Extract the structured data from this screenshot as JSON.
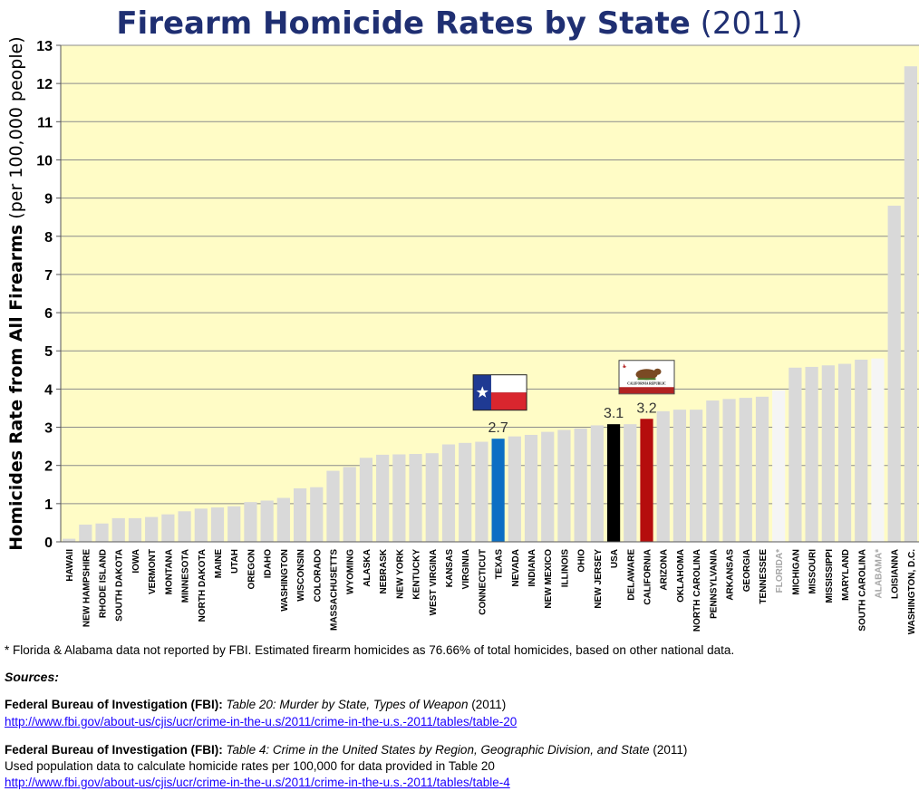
{
  "title": {
    "main": "Firearm Homicide Rates by State",
    "year": "(2011)"
  },
  "chart_data": {
    "type": "bar",
    "title": "Firearm Homicide Rates by State (2011)",
    "ylabel_bold": "Homicides Rate from All Firearms",
    "ylabel_rest": "(per 100,000 people)",
    "xlabel": "",
    "ylim": [
      0,
      13
    ],
    "yticks": [
      "0",
      "1",
      "2",
      "3",
      "4",
      "5",
      "6",
      "7",
      "8",
      "9",
      "10",
      "11",
      "12",
      "13"
    ],
    "grid": true,
    "background": "#fffcc6",
    "categories": [
      "HAWAII",
      "NEW HAMPSHIRE",
      "RHODE ISLAND",
      "SOUTH DAKOTA",
      "IOWA",
      "VERMONT",
      "MONTANA",
      "MINNESOTA",
      "NORTH DAKOTA",
      "MAINE",
      "UTAH",
      "OREGON",
      "IDAHO",
      "WASHINGTON",
      "WISCONSIN",
      "COLORADO",
      "MASSACHUSETTS",
      "WYOMING",
      "ALASKA",
      "NEBRASK",
      "NEW YORK",
      "KENTUCKY",
      "WEST VIRGINA",
      "KANSAS",
      "VIRGINIA",
      "CONNECTICUT",
      "TEXAS",
      "NEVADA",
      "INDIANA",
      "NEW MEXICO",
      "ILLINOIS",
      "OHIO",
      "NEW JERSEY",
      "USA",
      "DELAWARE",
      "CALIFORNIA",
      "ARIZONA",
      "OKLAHOMA",
      "NORTH CAROLINA",
      "PENNSYLVANIA",
      "ARKANSAS",
      "GEORGIA",
      "TENNESSEE",
      "FLORIDA*",
      "MICHIGAN",
      "MISSOURI",
      "MISSISSIPPI",
      "MARYLAND",
      "SOUTH CAROLINA",
      "ALABAMA*",
      "LOISIANNA",
      "WASHINGTON, D.C."
    ],
    "values": [
      0.08,
      0.45,
      0.48,
      0.62,
      0.62,
      0.65,
      0.72,
      0.8,
      0.87,
      0.9,
      0.93,
      1.04,
      1.08,
      1.15,
      1.4,
      1.43,
      1.86,
      1.96,
      2.2,
      2.28,
      2.29,
      2.3,
      2.32,
      2.55,
      2.59,
      2.62,
      2.7,
      2.76,
      2.8,
      2.88,
      2.93,
      2.97,
      3.05,
      3.08,
      3.08,
      3.22,
      3.42,
      3.46,
      3.46,
      3.7,
      3.74,
      3.77,
      3.8,
      3.97,
      4.56,
      4.58,
      4.62,
      4.66,
      4.77,
      4.8,
      8.8,
      12.45
    ],
    "colors": {
      "default": "#d9d9d9",
      "TEXAS": "#0c6fc4",
      "USA": "#000000",
      "CALIFORNIA": "#b50d0d",
      "FLORIDA*": "#f5f5f5",
      "ALABAMA*": "#f5f5f5",
      "title": "#1f2f72",
      "faded_label": "#a6a6a6"
    },
    "faded_categories": [
      "FLORIDA*",
      "ALABAMA*"
    ],
    "annotations": [
      {
        "category": "TEXAS",
        "text": "2.7",
        "flag": "texas-flag"
      },
      {
        "category": "USA",
        "text": "3.1"
      },
      {
        "category": "CALIFORNIA",
        "text": "3.2",
        "flag": "california-flag"
      }
    ],
    "california_flag_text": "CALIFORNIA REPUBLIC"
  },
  "notes": {
    "footnote": "* Florida & Alabama data not reported by FBI. Estimated firearm homicides as 76.66% of total homicides, based on other national data.",
    "sources_heading": "Sources:",
    "source1": {
      "org": "Federal Bureau of Investigation (FBI):",
      "title": "Table 20: Murder by State, Types of Weapon",
      "year": "(2011)",
      "url": "http://www.fbi.gov/about-us/cjis/ucr/crime-in-the-u.s/2011/crime-in-the-u.s.-2011/tables/table-20"
    },
    "source2": {
      "org": "Federal Bureau of Investigation (FBI):",
      "title": "Table 4: Crime in the United States by Region, Geographic Division, and State",
      "year": "(2011)",
      "note": "Used population data to calculate homicide rates per 100,000 for data provided in Table 20",
      "url": "http://www.fbi.gov/about-us/cjis/ucr/crime-in-the-u.s/2011/crime-in-the-u.s.-2011/tables/table-4"
    }
  }
}
